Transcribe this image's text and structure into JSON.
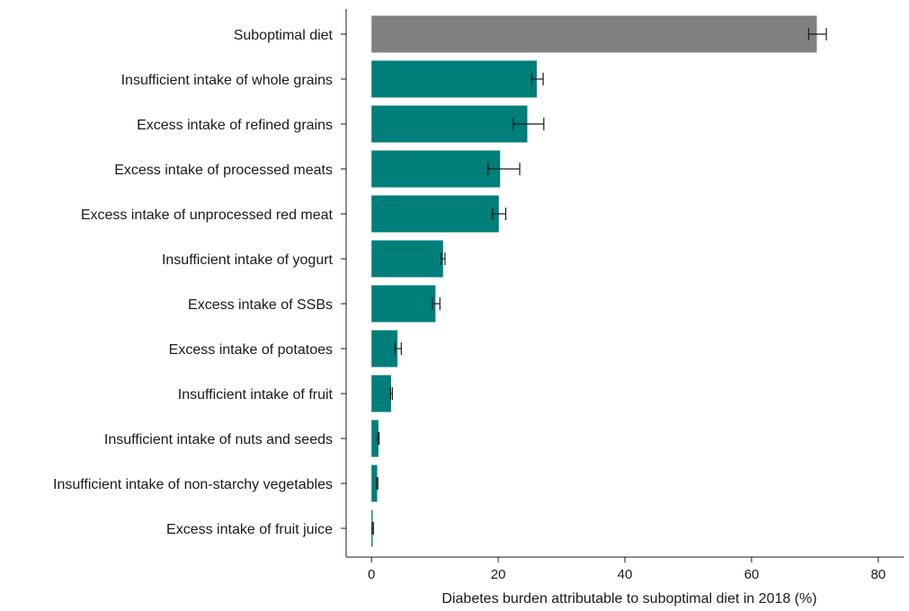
{
  "chart_data": {
    "type": "bar",
    "orientation": "horizontal",
    "xlabel": "Diabetes burden attributable to suboptimal diet in 2018 (%)",
    "ylabel": "",
    "xlim": [
      -4,
      84
    ],
    "xticks": [
      0,
      20,
      40,
      60,
      80
    ],
    "grid": false,
    "colors": {
      "total": "#808080",
      "factor": "#007e7a",
      "errorbar": "#1a1a1a"
    },
    "categories": [
      "Suboptimal diet",
      "Insufficient intake of whole grains",
      "Excess intake of refined grains",
      "Excess intake of processed meats",
      "Excess intake of unprocessed red meat",
      "Insufficient intake of yogurt",
      "Excess intake of SSBs",
      "Excess intake of potatoes",
      "Insufficient intake of fruit",
      "Insufficient intake of nuts and seeds",
      "Insufficient intake of non-starchy vegetables",
      "Excess intake of fruit juice"
    ],
    "values": [
      70.3,
      26.1,
      24.6,
      20.3,
      20.1,
      11.3,
      10.1,
      4.1,
      3.1,
      1.1,
      0.9,
      0.2
    ],
    "error_low": [
      69.0,
      25.3,
      22.4,
      18.4,
      19.1,
      11.0,
      9.6,
      3.7,
      3.0,
      1.0,
      0.8,
      0.1
    ],
    "error_high": [
      71.8,
      27.1,
      27.2,
      23.4,
      21.2,
      11.6,
      10.8,
      4.7,
      3.3,
      1.2,
      1.0,
      0.3
    ]
  }
}
